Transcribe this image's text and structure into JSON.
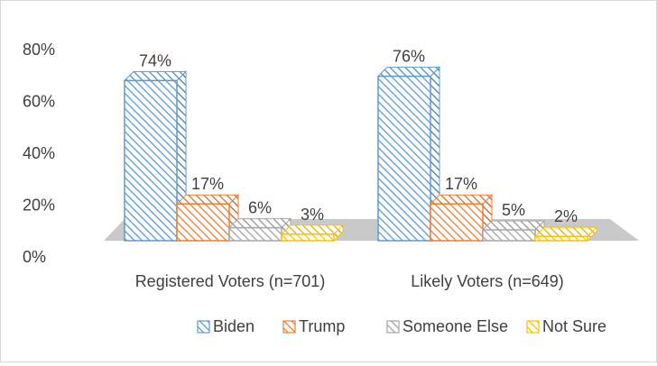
{
  "chart_data": {
    "type": "bar",
    "categories": [
      "Registered Voters (n=701)",
      "Likely Voters (n=649)"
    ],
    "series": [
      {
        "name": "Biden",
        "values": [
          74,
          76
        ],
        "color": "#5B9BD5",
        "labels": [
          "74%",
          "76%"
        ]
      },
      {
        "name": "Trump",
        "values": [
          17,
          17
        ],
        "color": "#ED7D31",
        "labels": [
          "17%",
          "17%"
        ]
      },
      {
        "name": "Someone Else",
        "values": [
          6,
          5
        ],
        "color": "#A5A5A5",
        "labels": [
          "6%",
          "5%"
        ]
      },
      {
        "name": "Not Sure",
        "values": [
          3,
          2
        ],
        "color": "#FFC000",
        "labels": [
          "3%",
          "2%"
        ]
      }
    ],
    "yticks": [
      "0%",
      "20%",
      "40%",
      "60%",
      "80%"
    ],
    "ylim": [
      0,
      80
    ],
    "legend_position": "bottom",
    "grid": false,
    "style": "3d-column-hatched"
  }
}
